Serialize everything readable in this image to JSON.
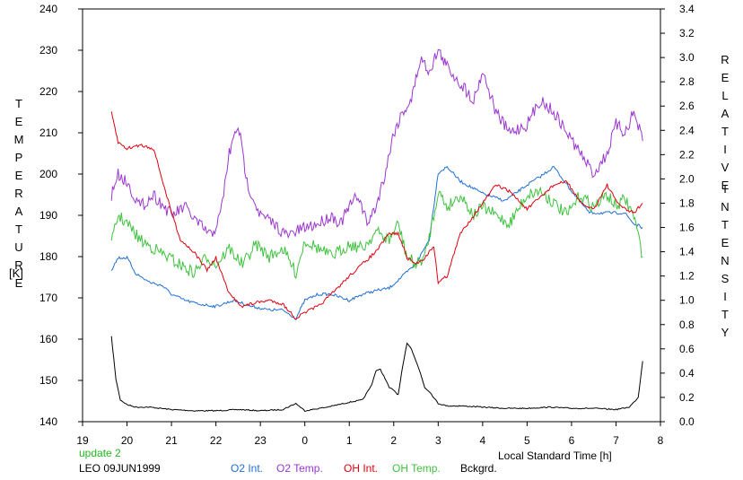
{
  "window": {
    "width": 828,
    "height": 535
  },
  "colors": {
    "o2_int": "#1f6fd6",
    "o2_temp": "#9b37d0",
    "oh_int": "#e0000f",
    "oh_temp": "#3fc23f",
    "bckgrd": "#000000",
    "update": "#22b522",
    "axis": "#000000"
  },
  "chart_data": {
    "type": "line",
    "left_axis": {
      "label_letters": [
        "T",
        "E",
        "M",
        "P",
        "E",
        "R",
        "A",
        "T",
        "U",
        "R",
        "E"
      ],
      "unit": "[K]",
      "range": [
        140,
        240
      ],
      "ticks": [
        "240",
        "230",
        "220",
        "210",
        "200",
        "190",
        "180",
        "170",
        "160",
        "150",
        "140"
      ]
    },
    "right_axis": {
      "label_word1": [
        "R",
        "E",
        "L",
        "A",
        "T",
        "I",
        "V",
        "E"
      ],
      "label_word2": [
        "I",
        "N",
        "T",
        "E",
        "N",
        "S",
        "I",
        "T",
        "Y"
      ],
      "range": [
        0.0,
        3.4
      ],
      "ticks": [
        "3.4",
        "3.2",
        "3.0",
        "2.8",
        "2.6",
        "2.4",
        "2.2",
        "2.0",
        "1.8",
        "1.6",
        "1.4",
        "1.2",
        "1.0",
        "0.8",
        "0.6",
        "0.4",
        "0.2",
        "0.0"
      ]
    },
    "x_axis": {
      "label": "Local Standard Time [h]",
      "range": [
        19,
        32
      ],
      "ticks": [
        "19",
        "20",
        "21",
        "22",
        "23",
        "0",
        "1",
        "2",
        "3",
        "4",
        "5",
        "6",
        "7",
        "8"
      ]
    },
    "series": [
      {
        "name": "O2 Int.",
        "axis": "right",
        "x": [
          19.65,
          19.8,
          20.0,
          20.2,
          20.5,
          20.8,
          21.0,
          21.3,
          21.6,
          22.0,
          22.4,
          22.8,
          23.2,
          23.5,
          23.8,
          24.0,
          24.3,
          24.6,
          25.0,
          25.3,
          25.6,
          25.9,
          26.2,
          26.5,
          26.8,
          27.0,
          27.2,
          27.5,
          28.0,
          28.5,
          29.0,
          29.3,
          29.6,
          30.0,
          30.4,
          30.8,
          31.2,
          31.4,
          31.6
        ],
        "y": [
          1.25,
          1.35,
          1.35,
          1.22,
          1.15,
          1.12,
          1.05,
          1.0,
          0.97,
          0.95,
          1.0,
          0.95,
          0.92,
          0.92,
          0.85,
          1.0,
          1.05,
          1.05,
          1.0,
          1.05,
          1.08,
          1.1,
          1.2,
          1.3,
          1.5,
          2.05,
          2.1,
          1.98,
          1.88,
          1.82,
          1.95,
          2.02,
          2.1,
          1.9,
          1.72,
          1.72,
          1.72,
          1.63,
          1.6
        ]
      },
      {
        "name": "O2 Temp.",
        "axis": "left",
        "x": [
          19.65,
          19.8,
          20.0,
          20.3,
          20.6,
          21.0,
          21.3,
          21.6,
          21.9,
          22.1,
          22.3,
          22.5,
          22.7,
          23.0,
          23.3,
          23.6,
          24.0,
          24.3,
          24.6,
          24.8,
          25.0,
          25.2,
          25.4,
          25.6,
          25.8,
          26.0,
          26.2,
          26.4,
          26.6,
          26.8,
          27.0,
          27.2,
          27.5,
          27.8,
          28.0,
          28.3,
          28.6,
          29.0,
          29.3,
          29.6,
          29.9,
          30.2,
          30.5,
          30.8,
          31.0,
          31.2,
          31.4,
          31.6
        ],
        "y": [
          195,
          200,
          198,
          192,
          195,
          190,
          192,
          188,
          185,
          190,
          205,
          212,
          198,
          190,
          188,
          185,
          187,
          188,
          190,
          188,
          192,
          195,
          188,
          192,
          200,
          210,
          215,
          218,
          228,
          225,
          230,
          226,
          222,
          218,
          225,
          215,
          210,
          212,
          218,
          215,
          210,
          205,
          200,
          205,
          212,
          210,
          215,
          208
        ]
      },
      {
        "name": "OH Int.",
        "axis": "right",
        "x": [
          19.65,
          19.8,
          20.0,
          20.3,
          20.6,
          20.9,
          21.2,
          21.5,
          21.8,
          22.0,
          22.3,
          22.6,
          22.9,
          23.2,
          23.5,
          23.8,
          24.0,
          24.3,
          24.6,
          25.0,
          25.3,
          25.6,
          25.9,
          26.1,
          26.3,
          26.5,
          26.7,
          26.9,
          27.0,
          27.2,
          27.5,
          28.0,
          28.3,
          28.6,
          29.0,
          29.3,
          29.6,
          29.9,
          30.2,
          30.5,
          30.8,
          31.0,
          31.2,
          31.4,
          31.6
        ],
        "y": [
          2.55,
          2.3,
          2.25,
          2.28,
          2.25,
          1.85,
          1.5,
          1.4,
          1.25,
          1.35,
          1.05,
          0.95,
          0.98,
          1.0,
          0.97,
          0.85,
          0.9,
          0.95,
          1.05,
          1.2,
          1.3,
          1.4,
          1.55,
          1.55,
          1.35,
          1.3,
          1.35,
          1.45,
          1.15,
          1.2,
          1.55,
          1.8,
          1.95,
          1.9,
          1.75,
          1.85,
          1.95,
          1.98,
          1.8,
          1.75,
          1.95,
          1.82,
          1.75,
          1.72,
          1.8
        ]
      },
      {
        "name": "OH Temp.",
        "axis": "left",
        "x": [
          19.65,
          19.8,
          20.0,
          20.3,
          20.6,
          20.9,
          21.2,
          21.5,
          21.8,
          22.0,
          22.3,
          22.6,
          22.9,
          23.2,
          23.5,
          23.8,
          24.0,
          24.3,
          24.6,
          25.0,
          25.3,
          25.6,
          25.9,
          26.1,
          26.3,
          26.5,
          26.7,
          26.9,
          27.0,
          27.2,
          27.5,
          27.8,
          28.0,
          28.3,
          28.6,
          29.0,
          29.3,
          29.6,
          29.9,
          30.2,
          30.5,
          30.8,
          31.0,
          31.2,
          31.4,
          31.6
        ],
        "y": [
          183,
          190,
          188,
          184,
          182,
          180,
          178,
          176,
          180,
          178,
          182,
          178,
          183,
          180,
          182,
          176,
          184,
          182,
          180,
          183,
          182,
          186,
          184,
          188,
          180,
          178,
          180,
          190,
          196,
          192,
          195,
          190,
          192,
          190,
          188,
          195,
          196,
          193,
          190,
          195,
          192,
          195,
          192,
          194,
          190,
          180
        ]
      },
      {
        "name": "Bckgrd.",
        "axis": "right",
        "x": [
          19.65,
          19.75,
          19.85,
          20.0,
          20.2,
          20.5,
          21.0,
          21.5,
          22.0,
          22.5,
          23.0,
          23.5,
          23.8,
          24.0,
          24.5,
          25.0,
          25.3,
          25.5,
          25.6,
          25.7,
          25.8,
          25.9,
          26.0,
          26.1,
          26.2,
          26.3,
          26.4,
          26.5,
          26.6,
          26.7,
          26.8,
          26.9,
          27.0,
          27.2,
          27.5,
          28.0,
          28.5,
          29.0,
          29.5,
          30.0,
          30.5,
          31.0,
          31.3,
          31.5,
          31.6
        ],
        "y": [
          0.7,
          0.35,
          0.18,
          0.14,
          0.12,
          0.12,
          0.1,
          0.09,
          0.09,
          0.1,
          0.09,
          0.1,
          0.15,
          0.09,
          0.12,
          0.16,
          0.18,
          0.3,
          0.42,
          0.43,
          0.36,
          0.28,
          0.26,
          0.22,
          0.45,
          0.65,
          0.6,
          0.5,
          0.4,
          0.28,
          0.25,
          0.2,
          0.15,
          0.13,
          0.13,
          0.12,
          0.11,
          0.11,
          0.12,
          0.11,
          0.11,
          0.1,
          0.12,
          0.2,
          0.5
        ]
      }
    ],
    "legend": [
      "O2 Int.",
      "O2 Temp.",
      "OH Int.",
      "OH Temp.",
      "Bckgrd."
    ]
  },
  "footer": {
    "update": "update 2",
    "station": "LEO 09JUN1999"
  }
}
